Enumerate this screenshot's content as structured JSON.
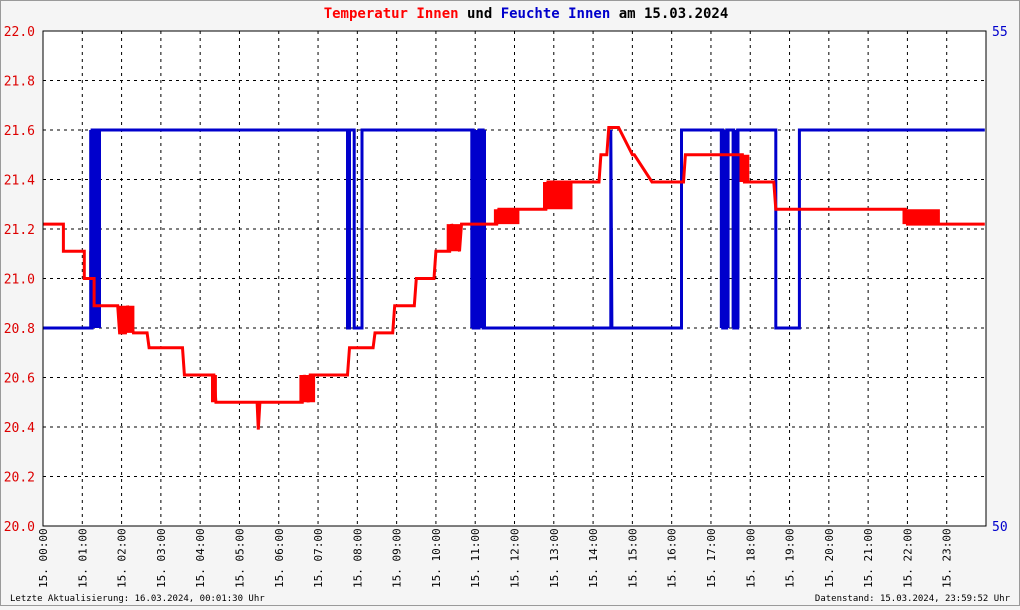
{
  "chart_data": {
    "type": "line",
    "title_parts": [
      {
        "text": "Temperatur Innen",
        "color": "#ff0000"
      },
      {
        "text": " und ",
        "color": "#000000"
      },
      {
        "text": "Feuchte Innen",
        "color": "#0000cc"
      },
      {
        "text": " am 15.03.2024",
        "color": "#000000"
      }
    ],
    "y_left": {
      "range": [
        20.0,
        22.0
      ],
      "ticks": [
        "20.0",
        "20.2",
        "20.4",
        "20.6",
        "20.8",
        "21.0",
        "21.2",
        "21.4",
        "21.6",
        "21.8",
        "22.0"
      ],
      "color": "#dd0000"
    },
    "y_right": {
      "range": [
        50,
        55
      ],
      "ticks": [
        "50",
        "55"
      ],
      "color": "#0000cc"
    },
    "x_range_hours": [
      0,
      24
    ],
    "x_ticks": [
      "15. 00:00",
      "15. 01:00",
      "15. 02:00",
      "15. 03:00",
      "15. 04:00",
      "15. 05:00",
      "15. 06:00",
      "15. 07:00",
      "15. 08:00",
      "15. 09:00",
      "15. 10:00",
      "15. 11:00",
      "15. 12:00",
      "15. 13:00",
      "15. 14:00",
      "15. 15:00",
      "15. 16:00",
      "15. 17:00",
      "15. 18:00",
      "15. 19:00",
      "15. 20:00",
      "15. 21:00",
      "15. 22:00",
      "15. 23:00"
    ],
    "grid": true,
    "series": [
      {
        "name": "Temperatur Innen",
        "color": "#ff0000",
        "axis": "left",
        "x": [
          0.0,
          0.52,
          0.52,
          1.05,
          1.05,
          1.3,
          1.3,
          1.9,
          1.95,
          2.1,
          2.15,
          2.3,
          2.35,
          2.65,
          2.7,
          3.55,
          3.6,
          4.35,
          4.4,
          5.45,
          5.48,
          5.52,
          5.6,
          6.6,
          6.65,
          6.75,
          6.8,
          7.75,
          7.8,
          8.4,
          8.45,
          8.9,
          8.95,
          9.45,
          9.5,
          9.95,
          10.0,
          10.35,
          10.4,
          10.6,
          10.65,
          11.55,
          11.6,
          12.05,
          12.1,
          12.8,
          12.85,
          14.15,
          14.2,
          14.35,
          14.4,
          14.6,
          14.65,
          15.0,
          15.05,
          15.5,
          15.55,
          16.3,
          16.35,
          17.8,
          17.85,
          18.6,
          18.65,
          21.95,
          22.0,
          23.97
        ],
        "y": [
          21.22,
          21.22,
          21.11,
          21.11,
          21.0,
          21.0,
          20.89,
          20.89,
          20.78,
          20.78,
          20.89,
          20.78,
          20.78,
          20.78,
          20.72,
          20.72,
          20.61,
          20.61,
          20.5,
          20.5,
          20.39,
          20.5,
          20.5,
          20.5,
          20.61,
          20.5,
          20.61,
          20.61,
          20.72,
          20.72,
          20.78,
          20.78,
          20.89,
          20.89,
          21.0,
          21.0,
          21.11,
          21.11,
          21.22,
          21.11,
          21.22,
          21.22,
          21.28,
          21.28,
          21.28,
          21.28,
          21.39,
          21.39,
          21.5,
          21.5,
          21.61,
          21.61,
          21.61,
          21.5,
          21.5,
          21.39,
          21.39,
          21.39,
          21.5,
          21.5,
          21.39,
          21.39,
          21.28,
          21.28,
          21.22,
          21.22
        ]
      },
      {
        "name": "Feuchte Innen",
        "color": "#0000cc",
        "axis": "right",
        "x": [
          0.0,
          1.25,
          1.25,
          1.4,
          1.4,
          7.75,
          7.75,
          7.8,
          7.8,
          7.92,
          7.92,
          8.12,
          8.12,
          10.95,
          10.95,
          11.1,
          11.1,
          11.2,
          11.2,
          14.45,
          14.45,
          14.48,
          14.48,
          16.25,
          16.25,
          17.3,
          17.3,
          17.4,
          17.4,
          17.58,
          17.58,
          17.68,
          17.68,
          18.65,
          18.65,
          19.25,
          19.25,
          23.97
        ],
        "y": [
          52.0,
          52.0,
          54.0,
          54.0,
          54.0,
          54.0,
          52.0,
          52.0,
          54.0,
          54.0,
          52.0,
          52.0,
          54.0,
          54.0,
          52.0,
          52.0,
          54.0,
          54.0,
          52.0,
          52.0,
          54.0,
          52.0,
          52.0,
          52.0,
          54.0,
          54.0,
          52.0,
          52.0,
          54.0,
          54.0,
          52.0,
          52.0,
          54.0,
          54.0,
          52.0,
          52.0,
          54.0,
          54.0
        ]
      }
    ],
    "noise_bands": [
      {
        "series": "temperature",
        "from": 1.2,
        "to": 1.35,
        "low": 21.0,
        "high": 21.11
      },
      {
        "series": "temperature",
        "from": 1.95,
        "to": 2.3,
        "low": 20.78,
        "high": 20.89
      },
      {
        "series": "temperature",
        "from": 4.3,
        "to": 4.4,
        "low": 20.5,
        "high": 20.61
      },
      {
        "series": "temperature",
        "from": 6.55,
        "to": 6.9,
        "low": 20.5,
        "high": 20.61
      },
      {
        "series": "temperature",
        "from": 10.3,
        "to": 10.6,
        "low": 21.11,
        "high": 21.22
      },
      {
        "series": "temperature",
        "from": 11.5,
        "to": 12.1,
        "low": 21.22,
        "high": 21.28
      },
      {
        "series": "temperature",
        "from": 12.75,
        "to": 13.45,
        "low": 21.28,
        "high": 21.39
      },
      {
        "series": "temperature",
        "from": 17.75,
        "to": 17.95,
        "low": 21.39,
        "high": 21.5
      },
      {
        "series": "temperature",
        "from": 21.9,
        "to": 22.8,
        "low": 21.22,
        "high": 21.28
      },
      {
        "series": "humidity",
        "from": 1.2,
        "to": 1.45,
        "low": 52.0,
        "high": 54.0
      },
      {
        "series": "humidity",
        "from": 10.9,
        "to": 11.25,
        "low": 52.0,
        "high": 54.0
      },
      {
        "series": "humidity",
        "from": 17.25,
        "to": 17.45,
        "low": 52.0,
        "high": 54.0
      },
      {
        "series": "humidity",
        "from": 17.55,
        "to": 17.7,
        "low": 52.0,
        "high": 54.0
      }
    ],
    "footer_left": "Letzte Aktualisierung: 16.03.2024, 00:01:30 Uhr",
    "footer_right": "Datenstand: 15.03.2024, 23:59:52 Uhr"
  }
}
